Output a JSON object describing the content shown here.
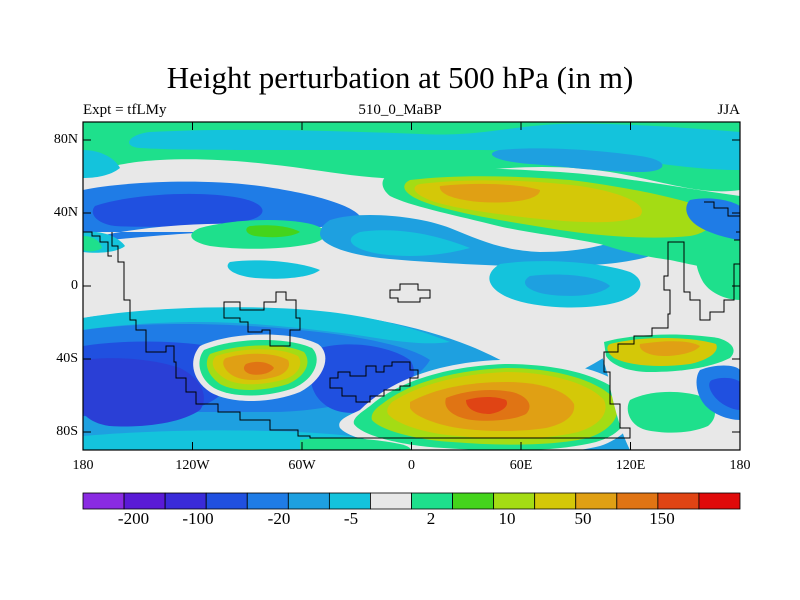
{
  "title": "Height perturbation at 500 hPa (in m)",
  "subtitle_left": "Expt = tfLMy",
  "subtitle_center": "510_0_MaBP",
  "subtitle_right": "JJA",
  "lat_labels": [
    "80N",
    "40N",
    "0",
    "40S",
    "80S"
  ],
  "lon_labels": [
    "180",
    "120W",
    "60W",
    "0",
    "60E",
    "120E",
    "180"
  ],
  "colorbar": {
    "colors": [
      "#8a2be2",
      "#5a1ad6",
      "#3a2bd9",
      "#2050e0",
      "#1f7ce6",
      "#1ea0e0",
      "#14c3dc",
      "#e8e8e8",
      "#1ee08c",
      "#44d41c",
      "#a4dc14",
      "#d4c808",
      "#e0a014",
      "#e07414",
      "#e04414",
      "#e00a0a"
    ],
    "tick_labels": [
      "-200",
      "-100",
      "-20",
      "-5",
      "2",
      "10",
      "50",
      "150"
    ]
  },
  "map_colors": {
    "background": "#e8e8e8",
    "blue_dark": "#2a3fd6",
    "blue": "#2050e0",
    "blue_mid": "#1f7ce6",
    "blue_light": "#1ea0e0",
    "cyan": "#14c3dc",
    "green": "#1ee08c",
    "green_yellow": "#44d41c",
    "yellow_green": "#a4dc14",
    "yellow": "#d4c808",
    "orange": "#e0a014",
    "dark_orange": "#e07414",
    "red_orange": "#e04414",
    "purple": "#3a2bd9",
    "coastline": "#000000"
  }
}
